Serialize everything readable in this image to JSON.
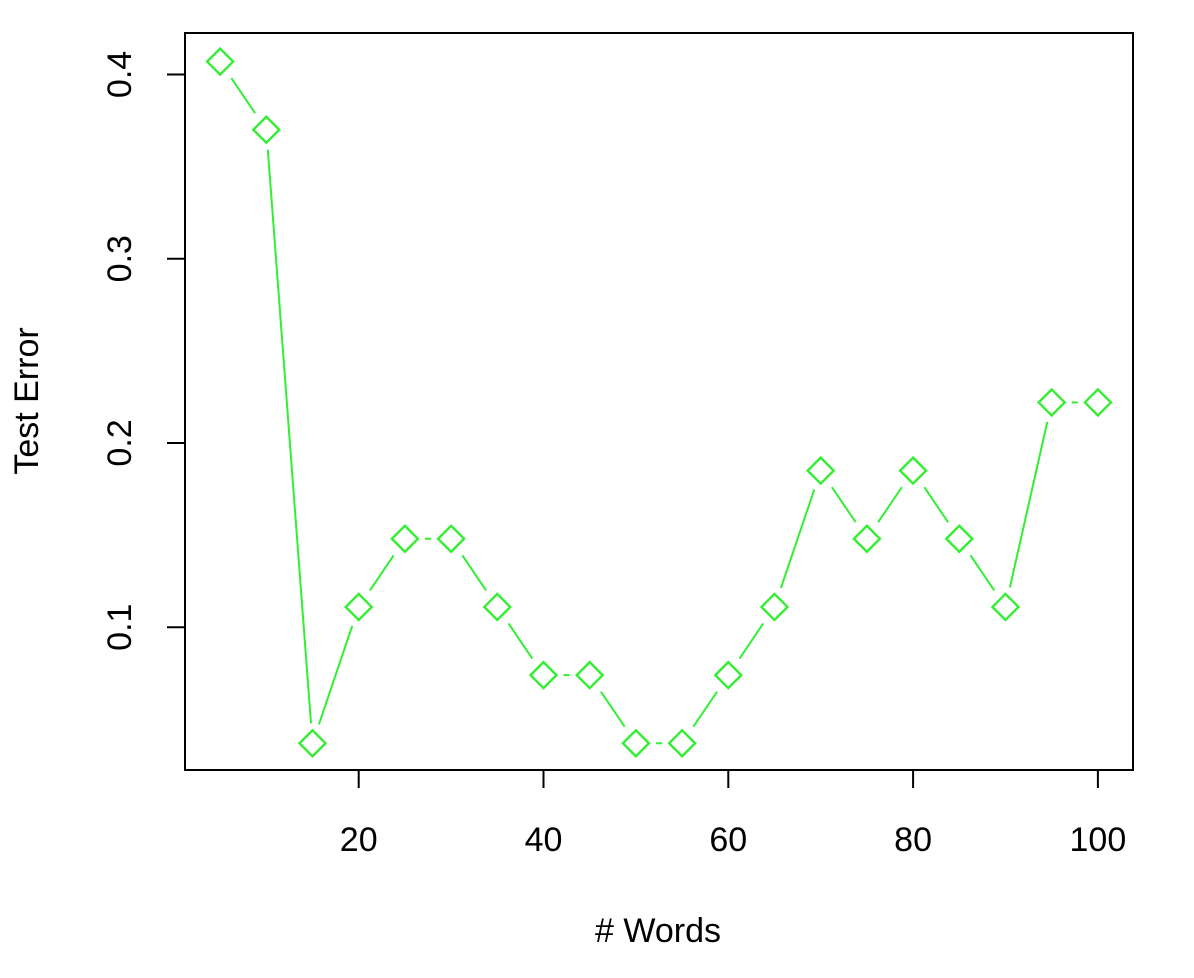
{
  "chart_data": {
    "type": "line",
    "title": "",
    "xlabel": "# Words",
    "ylabel": "Test Error",
    "x_ticks": [
      20,
      40,
      60,
      80,
      100
    ],
    "y_ticks": [
      0.1,
      0.2,
      0.3,
      0.4
    ],
    "xlim": [
      1.2,
      103.8
    ],
    "ylim": [
      0.0225,
      0.4225
    ],
    "grid": false,
    "series": [
      {
        "color": "#33ee33",
        "marker": "diamond",
        "x": [
          5,
          10,
          15,
          20,
          25,
          30,
          35,
          40,
          45,
          50,
          55,
          60,
          65,
          70,
          75,
          80,
          85,
          90,
          95,
          100
        ],
        "y": [
          0.407,
          0.37,
          0.037,
          0.111,
          0.148,
          0.148,
          0.111,
          0.074,
          0.074,
          0.037,
          0.037,
          0.074,
          0.111,
          0.185,
          0.148,
          0.185,
          0.148,
          0.111,
          0.222,
          0.222
        ]
      }
    ]
  }
}
